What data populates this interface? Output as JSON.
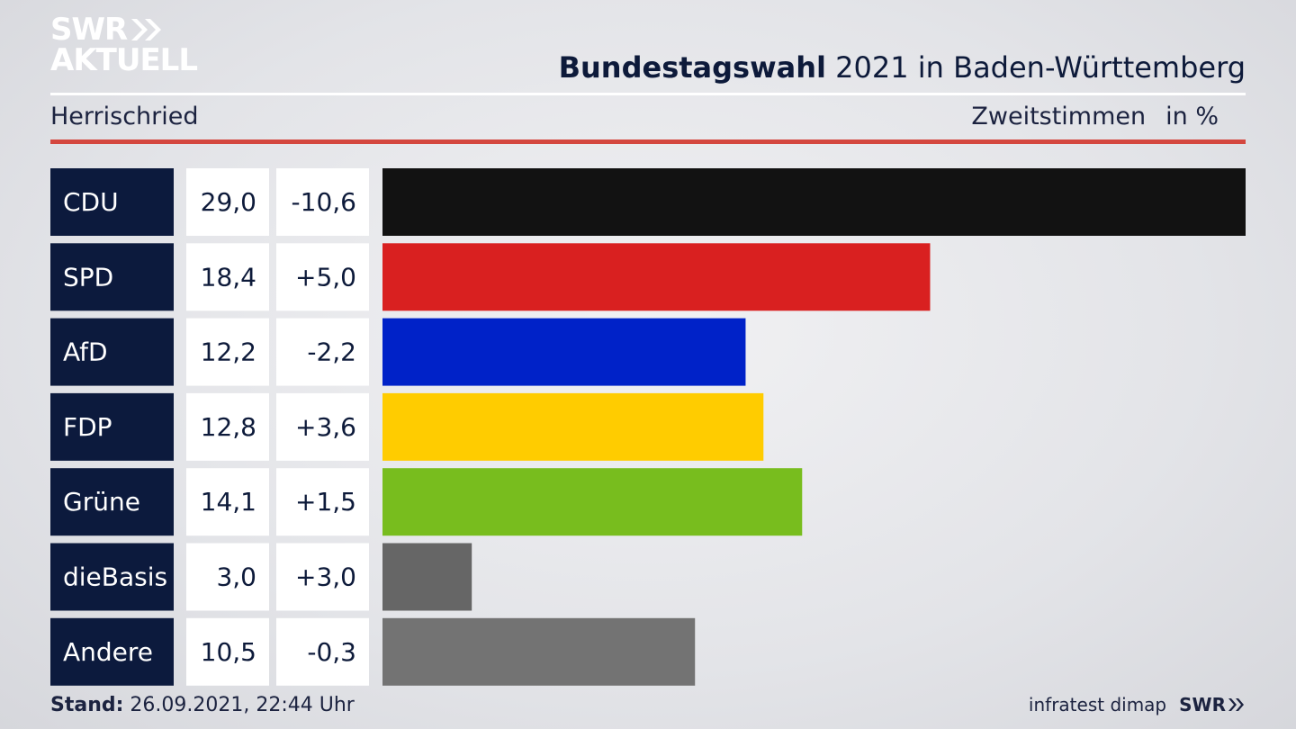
{
  "header": {
    "logo_line1": "SWR",
    "logo_line2": "AKTUELL",
    "title_bold": "Bundestagswahl",
    "title_rest": "2021 in Baden-Württemberg",
    "location": "Herrischried",
    "measure": "Zweitstimmen",
    "unit": "in %"
  },
  "footer": {
    "stand_label": "Stand:",
    "stand_value": "26.09.2021, 22:44 Uhr",
    "source": "infratest dimap",
    "brand": "SWR"
  },
  "chart_data": {
    "type": "bar",
    "orientation": "horizontal",
    "categories": [
      "CDU",
      "SPD",
      "AfD",
      "FDP",
      "Grüne",
      "dieBasis",
      "Andere"
    ],
    "values": [
      29.0,
      18.4,
      12.2,
      12.8,
      14.1,
      3.0,
      10.5
    ],
    "value_labels": [
      "29,0",
      "18,4",
      "12,2",
      "12,8",
      "14,1",
      "3,0",
      "10,5"
    ],
    "change_labels": [
      "-10,6",
      "+5,0",
      "-2,2",
      "+3,6",
      "+1,5",
      "+3,0",
      "-0,3"
    ],
    "changes": [
      -10.6,
      5.0,
      -2.2,
      3.6,
      1.5,
      3.0,
      -0.3
    ],
    "colors": [
      "#121212",
      "#d92020",
      "#0022c8",
      "#ffcc00",
      "#78bd1e",
      "#666666",
      "#737373"
    ],
    "xlim": [
      0,
      29.0
    ],
    "grid": false,
    "legend": "none"
  }
}
